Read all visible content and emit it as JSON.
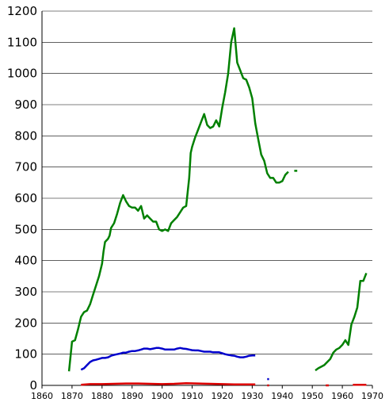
{
  "chart_data": {
    "type": "line",
    "title": "",
    "xlabel": "",
    "ylabel": "",
    "xlim": [
      1860,
      1970
    ],
    "ylim": [
      0,
      1200
    ],
    "grid": true,
    "x_ticks": [
      "1860",
      "1870",
      "1880",
      "1890",
      "1900",
      "1910",
      "1920",
      "1930",
      "1940",
      "1950",
      "1960",
      "1970"
    ],
    "y_ticks": [
      "0",
      "100",
      "200",
      "300",
      "400",
      "500",
      "600",
      "700",
      "800",
      "900",
      "1000",
      "1100",
      "1200"
    ],
    "series": [
      {
        "color": "#008000",
        "segments": [
          [
            [
              1869,
              45
            ],
            [
              1870,
              140
            ],
            [
              1871,
              145
            ],
            [
              1872,
              180
            ],
            [
              1873,
              220
            ],
            [
              1874,
              235
            ],
            [
              1875,
              240
            ],
            [
              1876,
              260
            ],
            [
              1877,
              290
            ],
            [
              1878,
              320
            ],
            [
              1879,
              350
            ],
            [
              1880,
              390
            ],
            [
              1880.5,
              430
            ],
            [
              1881,
              460
            ],
            [
              1882,
              470
            ],
            [
              1882.5,
              480
            ],
            [
              1883,
              505
            ],
            [
              1884,
              520
            ],
            [
              1885,
              550
            ],
            [
              1886,
              585
            ],
            [
              1887,
              610
            ],
            [
              1888,
              590
            ],
            [
              1889,
              575
            ],
            [
              1890,
              570
            ],
            [
              1891,
              570
            ],
            [
              1892,
              560
            ],
            [
              1893,
              575
            ],
            [
              1894,
              535
            ],
            [
              1895,
              545
            ],
            [
              1896,
              535
            ],
            [
              1897,
              525
            ],
            [
              1898,
              525
            ],
            [
              1899,
              500
            ],
            [
              1900,
              495
            ],
            [
              1901,
              500
            ],
            [
              1902,
              495
            ],
            [
              1903,
              520
            ],
            [
              1904,
              530
            ],
            [
              1905,
              540
            ],
            [
              1906,
              555
            ],
            [
              1907,
              570
            ],
            [
              1908,
              575
            ],
            [
              1909,
              665
            ],
            [
              1909.5,
              745
            ],
            [
              1910,
              765
            ],
            [
              1911,
              795
            ],
            [
              1912,
              820
            ],
            [
              1913,
              845
            ],
            [
              1914,
              870
            ],
            [
              1915,
              835
            ],
            [
              1916,
              825
            ],
            [
              1917,
              830
            ],
            [
              1918,
              850
            ],
            [
              1919,
              830
            ],
            [
              1920,
              890
            ],
            [
              1921,
              940
            ],
            [
              1922,
              1000
            ],
            [
              1923,
              1100
            ],
            [
              1924,
              1145
            ],
            [
              1925,
              1035
            ],
            [
              1926,
              1010
            ],
            [
              1927,
              985
            ],
            [
              1928,
              980
            ],
            [
              1929,
              955
            ],
            [
              1930,
              920
            ],
            [
              1931,
              840
            ],
            [
              1932,
              790
            ],
            [
              1933,
              740
            ],
            [
              1934,
              720
            ],
            [
              1935,
              680
            ],
            [
              1936,
              665
            ],
            [
              1937,
              665
            ],
            [
              1938,
              650
            ],
            [
              1939,
              650
            ],
            [
              1940,
              655
            ],
            [
              1941,
              675
            ],
            [
              1942,
              685
            ]
          ],
          [
            [
              1944,
              688
            ],
            [
              1945,
              688
            ]
          ],
          [
            [
              1951,
              48
            ],
            [
              1952,
              55
            ],
            [
              1953,
              60
            ],
            [
              1954,
              65
            ],
            [
              1955,
              75
            ],
            [
              1956,
              85
            ],
            [
              1957,
              105
            ],
            [
              1958,
              115
            ],
            [
              1959,
              120
            ],
            [
              1960,
              130
            ],
            [
              1961,
              145
            ],
            [
              1962,
              130
            ],
            [
              1963,
              195
            ],
            [
              1964,
              220
            ],
            [
              1965,
              250
            ],
            [
              1966,
              335
            ],
            [
              1967,
              335
            ],
            [
              1968,
              360
            ]
          ]
        ]
      },
      {
        "color": "#0000cc",
        "segments": [
          [
            [
              1873,
              50
            ],
            [
              1874,
              55
            ],
            [
              1875,
              65
            ],
            [
              1876,
              75
            ],
            [
              1877,
              80
            ],
            [
              1878,
              82
            ],
            [
              1879,
              85
            ],
            [
              1880,
              88
            ],
            [
              1881,
              88
            ],
            [
              1882,
              90
            ],
            [
              1883,
              95
            ],
            [
              1884,
              98
            ],
            [
              1885,
              100
            ],
            [
              1886,
              102
            ],
            [
              1887,
              105
            ],
            [
              1888,
              105
            ],
            [
              1889,
              108
            ],
            [
              1890,
              110
            ],
            [
              1891,
              110
            ],
            [
              1892,
              112
            ],
            [
              1893,
              115
            ],
            [
              1894,
              118
            ],
            [
              1895,
              118
            ],
            [
              1896,
              116
            ],
            [
              1897,
              118
            ],
            [
              1898,
              120
            ],
            [
              1899,
              120
            ],
            [
              1900,
              118
            ],
            [
              1901,
              115
            ],
            [
              1902,
              115
            ],
            [
              1903,
              115
            ],
            [
              1904,
              115
            ],
            [
              1905,
              118
            ],
            [
              1906,
              120
            ],
            [
              1907,
              118
            ],
            [
              1908,
              117
            ],
            [
              1909,
              115
            ],
            [
              1910,
              113
            ],
            [
              1911,
              112
            ],
            [
              1912,
              112
            ],
            [
              1913,
              110
            ],
            [
              1914,
              108
            ],
            [
              1915,
              108
            ],
            [
              1916,
              108
            ],
            [
              1917,
              106
            ],
            [
              1918,
              106
            ],
            [
              1919,
              106
            ],
            [
              1920,
              103
            ],
            [
              1921,
              100
            ],
            [
              1922,
              98
            ],
            [
              1923,
              96
            ],
            [
              1924,
              95
            ],
            [
              1925,
              92
            ],
            [
              1926,
              90
            ],
            [
              1927,
              90
            ],
            [
              1928,
              92
            ],
            [
              1929,
              95
            ],
            [
              1930,
              96
            ],
            [
              1931,
              96
            ]
          ],
          [
            [
              1935,
              20
            ],
            [
              1935.6,
              20
            ]
          ]
        ]
      },
      {
        "color": "#dd0000",
        "segments": [
          [
            [
              1873,
              2
            ],
            [
              1876,
              4
            ],
            [
              1880,
              4
            ],
            [
              1884,
              5
            ],
            [
              1888,
              6
            ],
            [
              1892,
              6
            ],
            [
              1896,
              5
            ],
            [
              1900,
              4
            ],
            [
              1904,
              5
            ],
            [
              1908,
              7
            ],
            [
              1912,
              6
            ],
            [
              1916,
              5
            ],
            [
              1920,
              4
            ],
            [
              1924,
              3
            ],
            [
              1928,
              3
            ],
            [
              1931,
              3
            ]
          ],
          [
            [
              1935,
              0
            ],
            [
              1935.6,
              0
            ]
          ],
          [
            [
              1954.5,
              0
            ],
            [
              1955.5,
              0
            ]
          ],
          [
            [
              1963.5,
              2
            ],
            [
              1968,
              2
            ]
          ]
        ]
      }
    ]
  }
}
